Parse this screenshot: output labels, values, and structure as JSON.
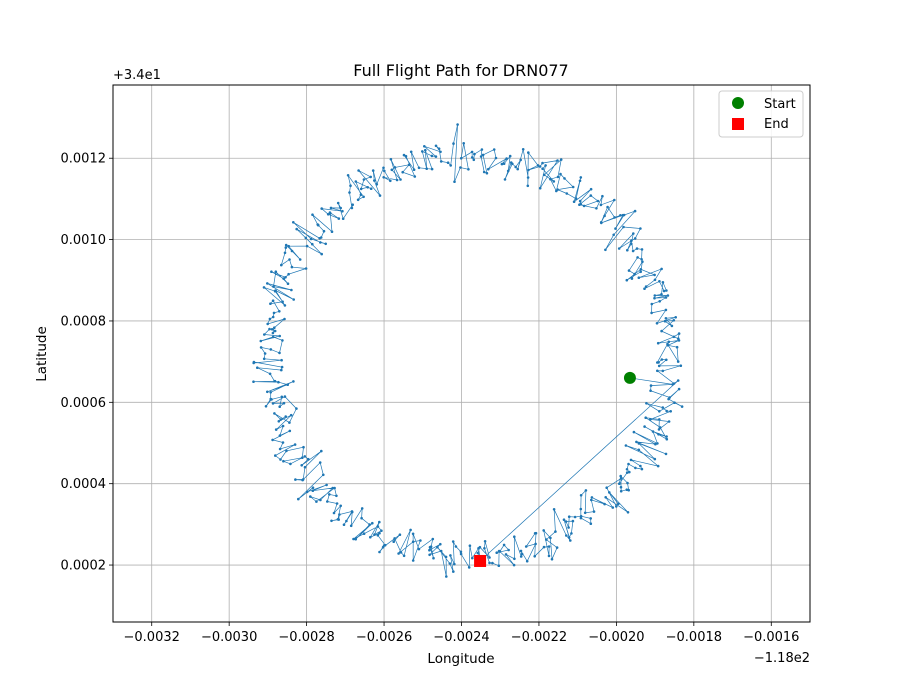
{
  "chart_data": {
    "type": "line",
    "title": "Full Flight Path for DRN077",
    "xlabel": "Longitude",
    "ylabel": "Latitude",
    "x_offset_label": "−1.18e2",
    "y_offset_label": "+3.4e1",
    "x_offset": -118,
    "y_offset": 34,
    "xlim": [
      -0.0033,
      -0.0015
    ],
    "ylim": [
      6e-05,
      0.00138
    ],
    "xticks": [
      -0.0032,
      -0.003,
      -0.0028,
      -0.0026,
      -0.0024,
      -0.0022,
      -0.002,
      -0.0018,
      -0.0016
    ],
    "xtick_labels": [
      "−0.0032",
      "−0.0030",
      "−0.0028",
      "−0.0026",
      "−0.0024",
      "−0.0022",
      "−0.0020",
      "−0.0018",
      "−0.0016"
    ],
    "yticks": [
      0.0002,
      0.0004,
      0.0006,
      0.0008,
      0.001,
      0.0012
    ],
    "ytick_labels": [
      "0.0002",
      "0.0004",
      "0.0006",
      "0.0008",
      "0.0010",
      "0.0012"
    ],
    "grid": true,
    "legend_position": "top-right",
    "series": [
      {
        "name": "Start",
        "marker": "circle",
        "color": "#008000",
        "x": [
          -0.001965
        ],
        "y": [
          0.00066
        ]
      },
      {
        "name": "End",
        "marker": "square",
        "color": "#ff0000",
        "x": [
          -0.002352
        ],
        "y": [
          0.00021
        ]
      }
    ],
    "path": {
      "color": "#1f77b4",
      "center": [
        -0.002385,
        0.00071
      ],
      "radius_x": 0.000515,
      "radius_y": 0.00049,
      "num_points": 520,
      "revolutions": 1.0,
      "start_angle_deg": -6.8
    }
  }
}
